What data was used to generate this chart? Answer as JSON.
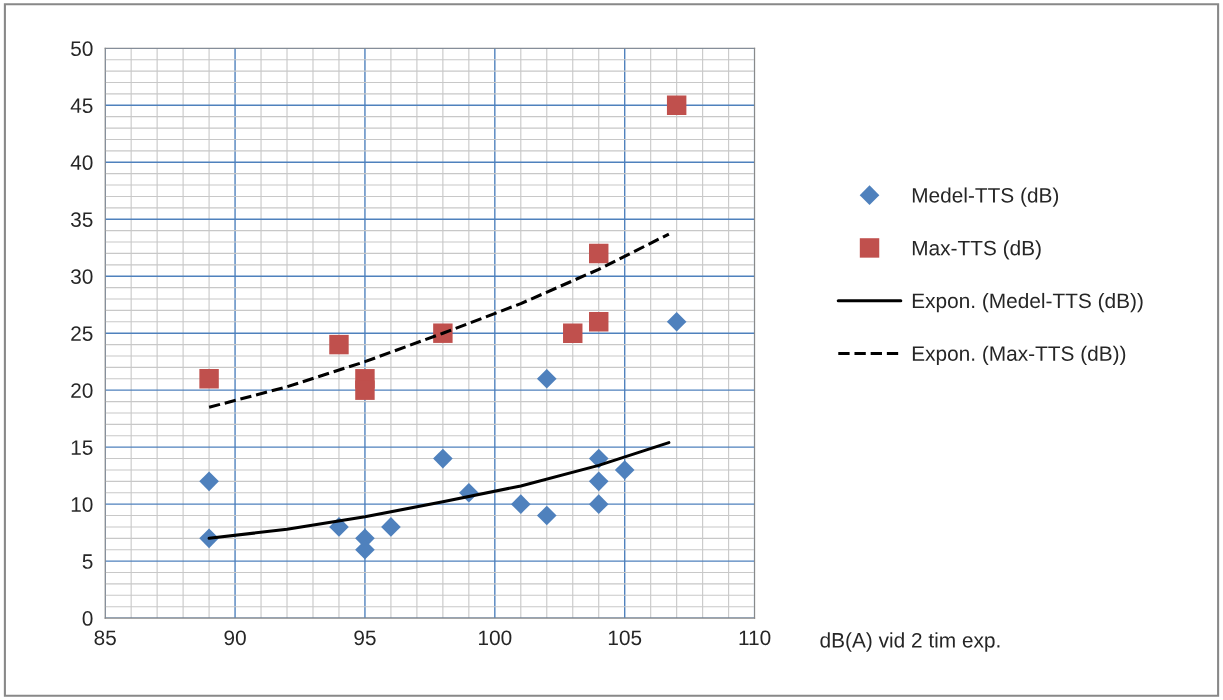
{
  "chart_data": {
    "type": "scatter",
    "xlabel": "dB(A) vid 2 tim exp.",
    "xlim": [
      85,
      110
    ],
    "xticks": [
      85,
      90,
      95,
      100,
      105,
      110
    ],
    "ylim": [
      0,
      50
    ],
    "yticks": [
      0,
      5,
      10,
      15,
      20,
      25,
      30,
      35,
      40,
      45,
      50
    ],
    "grid": true,
    "legend": "right",
    "series": [
      {
        "name": "Medel-TTS (dB)",
        "marker": "diamond",
        "color": "#4f81bd",
        "x": [
          89,
          89,
          94,
          95,
          95,
          96,
          98,
          99,
          101,
          102,
          102,
          104,
          104,
          104,
          105,
          107
        ],
        "values": [
          12,
          7,
          8,
          7,
          6,
          8,
          14,
          11,
          10,
          21,
          9,
          14,
          12,
          10,
          13,
          26
        ]
      },
      {
        "name": "Max-TTS (dB)",
        "marker": "square",
        "color": "#c0504d",
        "x": [
          89,
          94,
          95,
          95,
          98,
          103,
          104,
          104,
          107
        ],
        "values": [
          21,
          24,
          21,
          20,
          25,
          25,
          32,
          26,
          45
        ]
      },
      {
        "name": "Expon. (Medel-TTS (dB))",
        "type": "line",
        "line_style": "solid",
        "color": "#000000",
        "x": [
          89,
          92,
          95,
          98,
          101,
          104,
          106.7
        ],
        "values": [
          7.0,
          7.8,
          8.9,
          10.2,
          11.6,
          13.4,
          15.4
        ]
      },
      {
        "name": "Expon. (Max-TTS (dB))",
        "type": "line",
        "line_style": "dashed",
        "color": "#000000",
        "x": [
          89,
          92,
          95,
          98,
          101,
          104,
          106.7
        ],
        "values": [
          18.5,
          20.3,
          22.5,
          25.0,
          27.6,
          30.6,
          33.7
        ]
      }
    ]
  }
}
